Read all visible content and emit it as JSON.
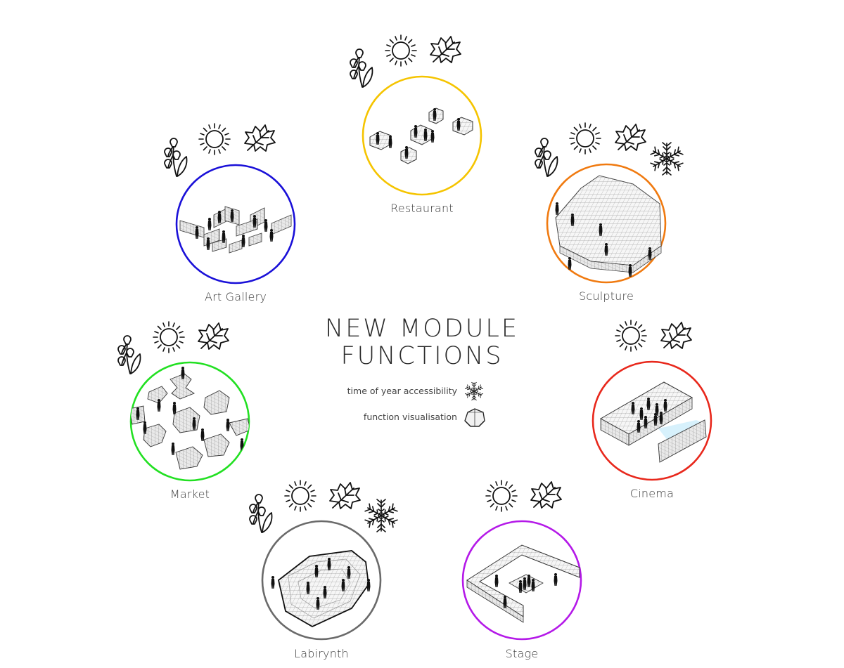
{
  "title": {
    "line1": "NEW MODULE",
    "line2": "FUNCTIONS"
  },
  "legend": [
    {
      "text": "time of year accessibility",
      "icon": "snowflake-icon"
    },
    {
      "text": "function visualisation",
      "icon": "module-icon"
    }
  ],
  "functions": [
    {
      "id": "restaurant",
      "label": "Restaurant",
      "color": "#f5c400",
      "seasons": [
        "spring-icon",
        "sun-icon",
        "autumn-leaf-icon"
      ]
    },
    {
      "id": "art-gallery",
      "label": "Art Gallery",
      "color": "#1a10d8",
      "seasons": [
        "spring-icon",
        "sun-icon",
        "autumn-leaf-icon"
      ]
    },
    {
      "id": "sculpture",
      "label": "Sculpture",
      "color": "#f07a10",
      "seasons": [
        "spring-icon",
        "sun-icon",
        "autumn-leaf-icon",
        "snowflake-icon"
      ]
    },
    {
      "id": "market",
      "label": "Market",
      "color": "#22e022",
      "seasons": [
        "spring-icon",
        "sun-icon",
        "autumn-leaf-icon"
      ]
    },
    {
      "id": "cinema",
      "label": "Cinema",
      "color": "#e8281c",
      "seasons": [
        "sun-icon",
        "autumn-leaf-icon"
      ]
    },
    {
      "id": "labirynth",
      "label": "Labirynth",
      "color": "#6a6a6a",
      "seasons": [
        "spring-icon",
        "sun-icon",
        "autumn-leaf-icon",
        "snowflake-icon"
      ]
    },
    {
      "id": "stage",
      "label": "Stage",
      "color": "#b419e8",
      "seasons": [
        "sun-icon",
        "autumn-leaf-icon"
      ]
    }
  ]
}
